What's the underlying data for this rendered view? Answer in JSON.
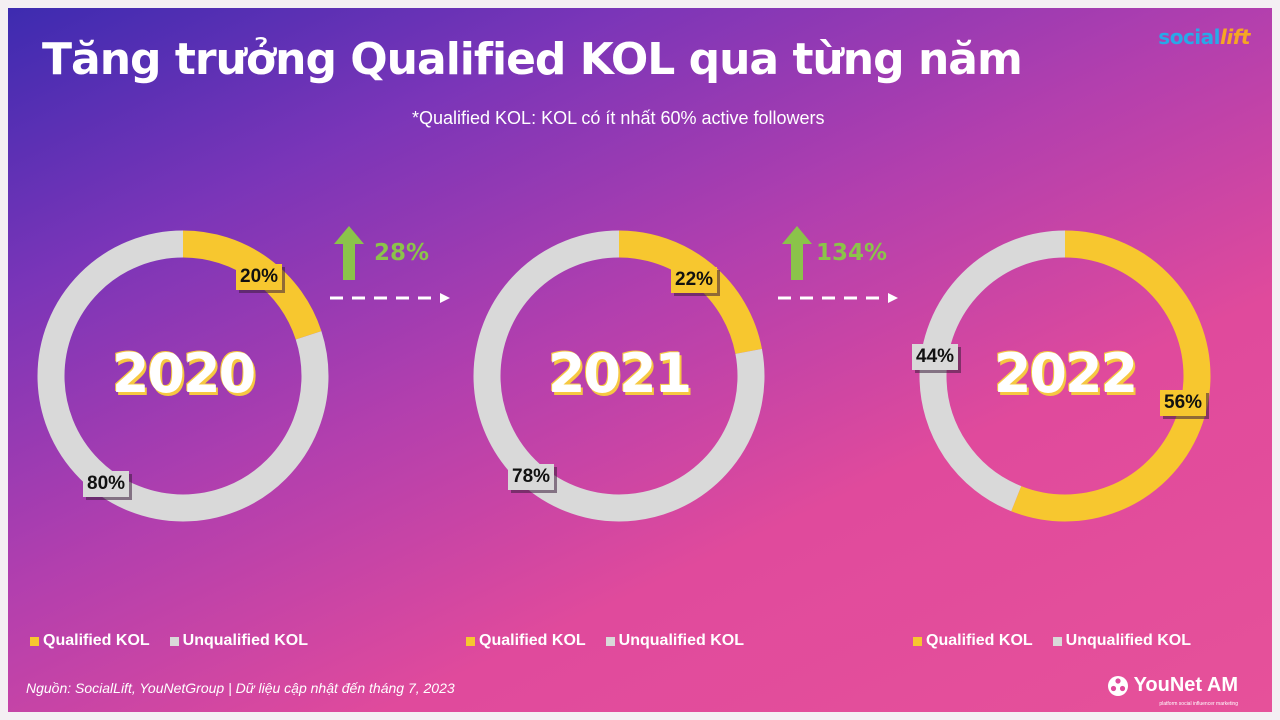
{
  "title": "Tăng trưởng Qualified KOL qua từng năm",
  "note": "*Qualified KOL: KOL có ít nhất 60% active followers",
  "brand": {
    "part1": "social",
    "part2": "lift"
  },
  "colors": {
    "qualified": "#f7c72f",
    "unqualified": "#d9d9d9",
    "growth": "#8bc34a"
  },
  "chart_data": [
    {
      "type": "pie",
      "year": "2020",
      "categories": [
        "Qualified KOL",
        "Unqualified KOL"
      ],
      "values": [
        20,
        80
      ],
      "labels": [
        "20%",
        "80%"
      ],
      "legend": [
        "Qualified KOL",
        "Unqualified KOL"
      ]
    },
    {
      "type": "pie",
      "year": "2021",
      "categories": [
        "Qualified KOL",
        "Unqualified KOL"
      ],
      "values": [
        22,
        78
      ],
      "labels": [
        "22%",
        "78%"
      ],
      "legend": [
        "Qualified KOL",
        "Unqualified KOL"
      ]
    },
    {
      "type": "pie",
      "year": "2022",
      "categories": [
        "Qualified KOL",
        "Unqualified KOL"
      ],
      "values": [
        56,
        44
      ],
      "labels": [
        "56%",
        "44%"
      ],
      "legend": [
        "Qualified KOL",
        "Unqualified KOL"
      ]
    }
  ],
  "growth": [
    {
      "value": "28%",
      "icon": "arrow-up-icon"
    },
    {
      "value": "134%",
      "icon": "arrow-up-icon"
    }
  ],
  "source": "Nguồn: SocialLift, YouNetGroup | Dữ liệu cập nhật đến tháng 7, 2023",
  "footer_logo": {
    "name": "YouNet AM",
    "tagline": "platform social influencer marketing",
    "icon": "younet-logo-icon"
  }
}
